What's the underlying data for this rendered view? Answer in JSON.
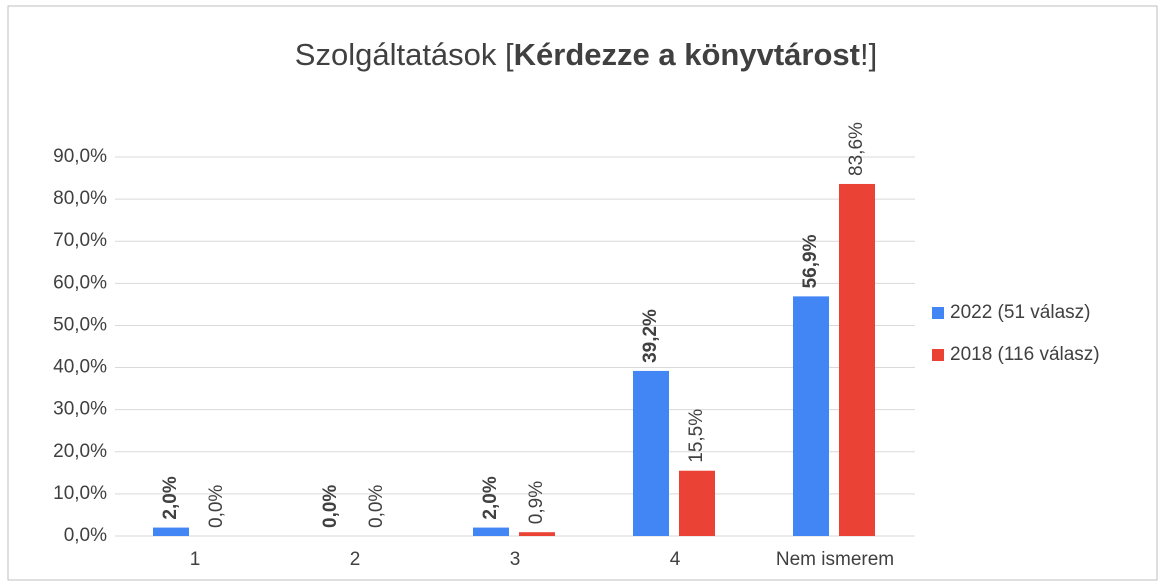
{
  "chart_data": {
    "type": "bar",
    "title_parts": [
      {
        "text": "Szolgáltatások [",
        "bold": false
      },
      {
        "text": "Kérdezze a könyvtárost",
        "bold": true
      },
      {
        "text": "!]",
        "bold": false
      }
    ],
    "categories": [
      "1",
      "2",
      "3",
      "4",
      "Nem ismerem"
    ],
    "series": [
      {
        "name": "2022 (51 válasz)",
        "color": "#4285f4",
        "bold_labels": true,
        "values": [
          2.0,
          0.0,
          2.0,
          39.2,
          56.9
        ],
        "value_labels": [
          "2,0%",
          "0,0%",
          "2,0%",
          "39,2%",
          "56,9%"
        ]
      },
      {
        "name": "2018 (116 válasz)",
        "color": "#ea4335",
        "bold_labels": false,
        "values": [
          0.0,
          0.0,
          0.9,
          15.5,
          83.6
        ],
        "value_labels": [
          "0,0%",
          "0,0%",
          "0,9%",
          "15,5%",
          "83,6%"
        ]
      }
    ],
    "ylim": [
      0,
      90
    ],
    "yticks": [
      {
        "value": 0,
        "label": "0,0%"
      },
      {
        "value": 10,
        "label": "10,0%"
      },
      {
        "value": 20,
        "label": "20,0%"
      },
      {
        "value": 30,
        "label": "30,0%"
      },
      {
        "value": 40,
        "label": "40,0%"
      },
      {
        "value": 50,
        "label": "50,0%"
      },
      {
        "value": 60,
        "label": "60,0%"
      },
      {
        "value": 70,
        "label": "70,0%"
      },
      {
        "value": 80,
        "label": "80,0%"
      },
      {
        "value": 90,
        "label": "90,0%"
      }
    ],
    "grid": true,
    "legend": "right"
  }
}
